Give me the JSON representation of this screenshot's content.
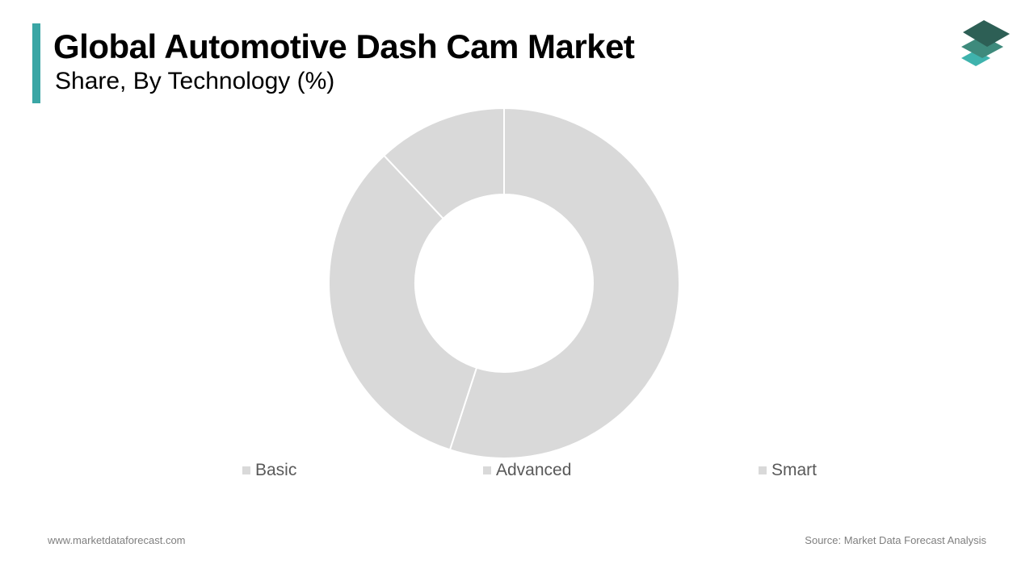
{
  "header": {
    "title": "Global Automotive Dash Cam Market",
    "subtitle": "Share, By Technology (%)"
  },
  "chart_data": {
    "type": "pie",
    "variant": "donut",
    "title": "Global Automotive Dash Cam Market",
    "subtitle": "Share, By Technology (%)",
    "categories": [
      "Basic",
      "Advanced",
      "Smart"
    ],
    "values": [
      55,
      33,
      12
    ],
    "colors": [
      "#d9d9d9",
      "#d9d9d9",
      "#d9d9d9"
    ],
    "legend_position": "bottom",
    "data_labels_shown": false
  },
  "footer": {
    "website": "www.marketdataforecast.com",
    "source": "Source: Market Data Forecast Analysis"
  },
  "colors": {
    "accent": "#3aa6a5",
    "logo_dark": "#2d5f55",
    "logo_mid": "#3e8a7c",
    "logo_light": "#3fb3ad",
    "legend_text": "#595959",
    "footer_text": "#7f7f7f"
  }
}
